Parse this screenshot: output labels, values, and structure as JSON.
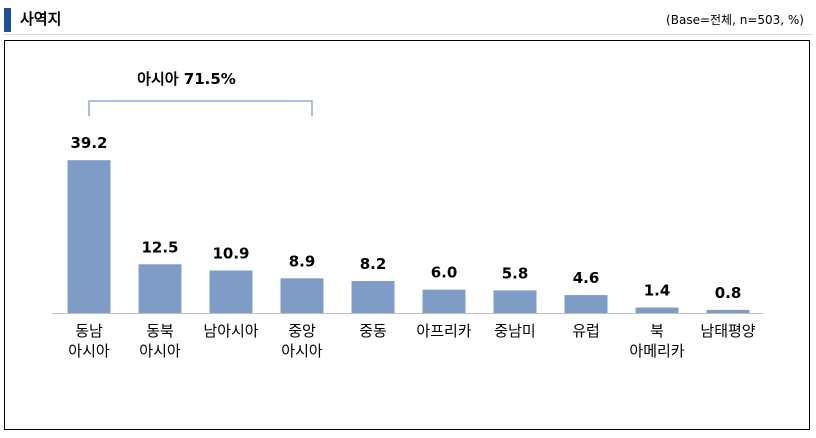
{
  "header": {
    "title": "사역지",
    "base_note": "(Base=전체,  n=503,  %)"
  },
  "chart_data": {
    "type": "bar",
    "title": "",
    "xlabel": "",
    "ylabel": "",
    "ylim": [
      0,
      40
    ],
    "grid": false,
    "bar_color": "#7f9cc6",
    "categories": [
      [
        "동남",
        "아시아"
      ],
      [
        "동북",
        "아시아"
      ],
      [
        "남아시아"
      ],
      [
        "중앙",
        "아시아"
      ],
      [
        "중동"
      ],
      [
        "아프리카"
      ],
      [
        "중남미"
      ],
      [
        "유럽"
      ],
      [
        "북",
        "아메리카"
      ],
      [
        "남태평양"
      ]
    ],
    "values": [
      39.2,
      12.5,
      10.9,
      8.9,
      8.2,
      6.0,
      5.8,
      4.6,
      1.4,
      0.8
    ],
    "value_labels": [
      "39.2",
      "12.5",
      "10.9",
      "8.9",
      "8.2",
      "6.0",
      "5.8",
      "4.6",
      "1.4",
      "0.8"
    ],
    "annotations": [
      {
        "text": "아시아 71.5%",
        "from_index": 0,
        "to_index": 3
      }
    ]
  }
}
